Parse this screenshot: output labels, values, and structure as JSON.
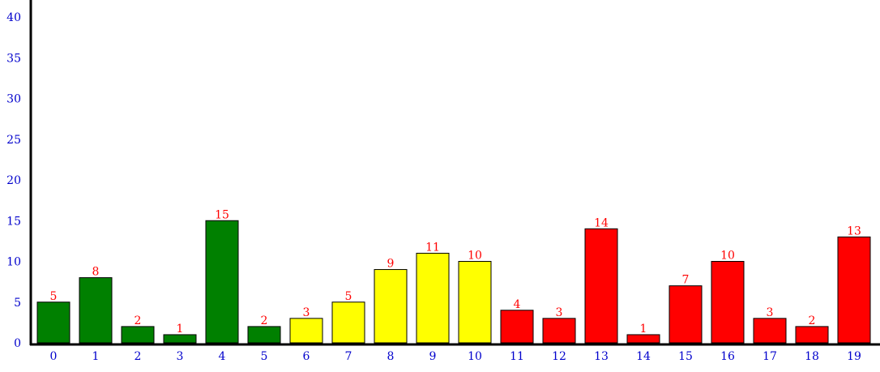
{
  "chart_data": {
    "type": "bar",
    "title": "",
    "xlabel": "",
    "ylabel": "",
    "categories": [
      "0",
      "1",
      "2",
      "3",
      "4",
      "5",
      "6",
      "7",
      "8",
      "9",
      "10",
      "11",
      "12",
      "13",
      "14",
      "15",
      "16",
      "17",
      "18",
      "19"
    ],
    "values": [
      5,
      8,
      2,
      1,
      15,
      2,
      3,
      5,
      9,
      11,
      10,
      4,
      3,
      14,
      1,
      7,
      10,
      3,
      2,
      13
    ],
    "bar_colors": [
      "#008000",
      "#008000",
      "#008000",
      "#008000",
      "#008000",
      "#008000",
      "#ffff00",
      "#ffff00",
      "#ffff00",
      "#ffff00",
      "#ffff00",
      "#ff0000",
      "#ff0000",
      "#ff0000",
      "#ff0000",
      "#ff0000",
      "#ff0000",
      "#ff0000",
      "#ff0000",
      "#ff0000"
    ],
    "ylim": [
      0,
      40
    ],
    "yticks": [
      0,
      5,
      10,
      15,
      20,
      25,
      30,
      35,
      40
    ],
    "grid": false,
    "legend": "none",
    "colors": {
      "tick_label": "#0000cc",
      "data_label": "#ff0000",
      "axis": "#000000",
      "bar_outline": "#000000"
    }
  }
}
